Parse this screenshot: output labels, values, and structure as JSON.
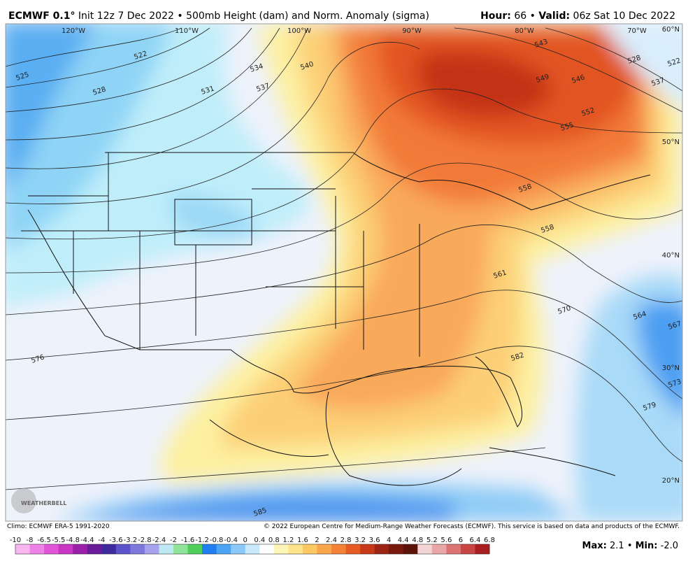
{
  "header": {
    "model": "ECMWF 0.1°",
    "init": "Init 12z 7 Dec 2022",
    "sep1": "•",
    "product": "500mb Height (dam) and Norm. Anomaly (sigma)",
    "hour_label": "Hour:",
    "hour": "66",
    "sep2": "•",
    "valid_label": "Valid:",
    "valid": "06z Sat 10 Dec 2022"
  },
  "map": {
    "lon_labels": [
      "120°W",
      "110°W",
      "100°W",
      "90°W",
      "80°W",
      "70°W"
    ],
    "lat_labels": [
      "60°N",
      "50°N",
      "40°N",
      "30°N",
      "20°N"
    ],
    "contour_labels": [
      522,
      525,
      528,
      531,
      534,
      537,
      540,
      546,
      549,
      552,
      555,
      558,
      558,
      561,
      564,
      567,
      570,
      573,
      576,
      579,
      582,
      585,
      543,
      528,
      537,
      522
    ],
    "logo": "WEATHERBELL"
  },
  "footer": {
    "climo": "Climo: ECMWF ERA-5 1991-2020",
    "copyright": "© 2022 European Centre for Medium-Range Weather Forecasts (ECMWF). This service is based on data and products of the ECMWF."
  },
  "colorbar": {
    "labels": [
      -10,
      -8,
      -6.5,
      -5.5,
      -4.8,
      -4.4,
      -4,
      -3.6,
      -3.2,
      -2.8,
      -2.4,
      -2,
      -1.6,
      -1.2,
      -0.8,
      -0.4,
      0,
      0.4,
      0.8,
      1.2,
      1.6,
      2,
      2.4,
      2.8,
      3.2,
      3.6,
      4,
      4.4,
      4.8,
      5.2,
      5.6,
      6,
      6.4,
      6.8
    ],
    "colors": [
      "#f7b6f0",
      "#ef82e6",
      "#e254d8",
      "#c936c4",
      "#9b1fa8",
      "#6a1b9a",
      "#3e2a9e",
      "#5b53c9",
      "#7c78dd",
      "#a6a3ec",
      "#bfe8f5",
      "#8fe39a",
      "#4fcf5a",
      "#1f7ff0",
      "#4aa3f5",
      "#8ac8f9",
      "#c8e8fc",
      "#fefefe",
      "#fdf5b8",
      "#fde38a",
      "#fcc864",
      "#f9a64a",
      "#f38236",
      "#e85a24",
      "#c8391a",
      "#9c2412",
      "#78180c",
      "#5a1208",
      "#f3d3d3",
      "#e9a6a6",
      "#dc7474",
      "#c94545",
      "#a91e1e"
    ],
    "max_label": "Max:",
    "max": "2.1",
    "sep": "•",
    "min_label": "Min:",
    "min": "-2.0"
  }
}
